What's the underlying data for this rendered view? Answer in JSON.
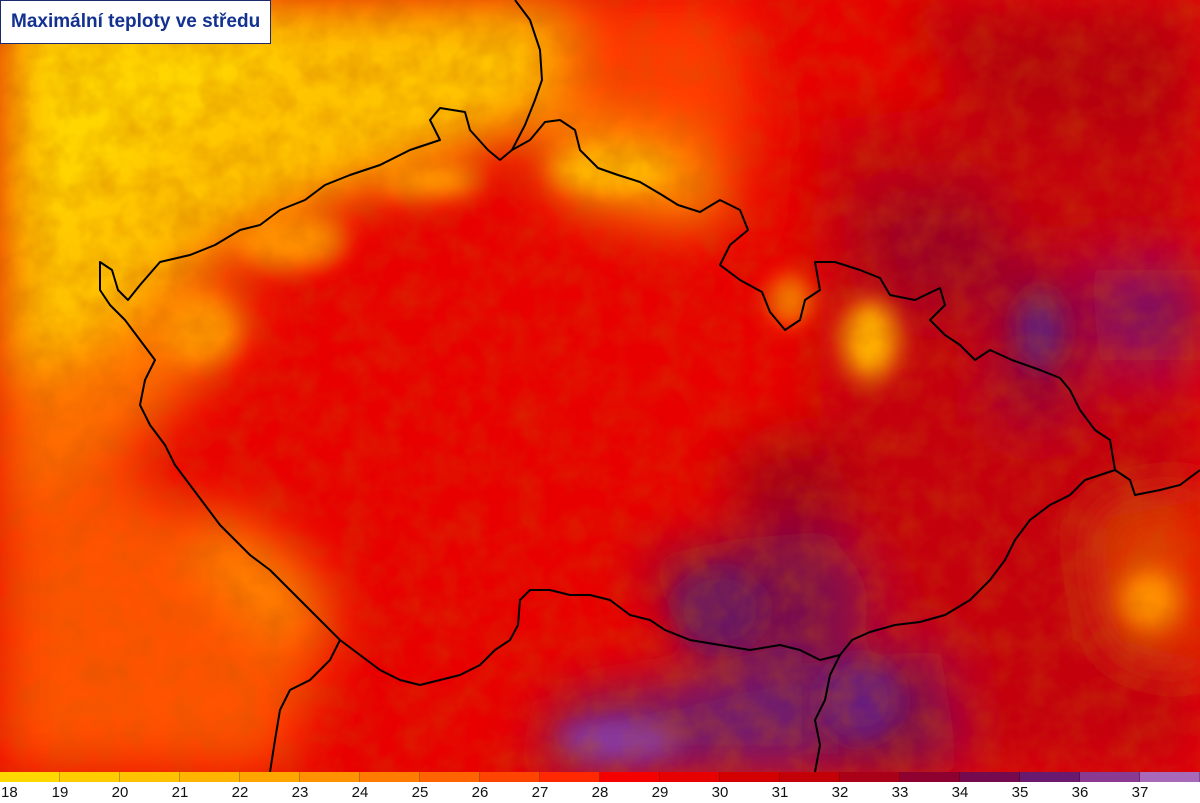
{
  "title": "Maximální teploty ve středu",
  "legend": {
    "labels": [
      "18",
      "19",
      "20",
      "21",
      "22",
      "23",
      "24",
      "25",
      "26",
      "27",
      "28",
      "29",
      "30",
      "31",
      "32",
      "33",
      "34",
      "35",
      "36",
      "37"
    ],
    "colors": [
      "#ffd800",
      "#ffcc00",
      "#ffc200",
      "#ffb500",
      "#ffa500",
      "#ff9200",
      "#ff7c00",
      "#ff6400",
      "#ff4400",
      "#ff2800",
      "#f50000",
      "#e60000",
      "#d40000",
      "#c30008",
      "#aa0018",
      "#8e0030",
      "#750a4e",
      "#6a1a6e",
      "#8a3a90",
      "#a86ab8"
    ]
  },
  "map": {
    "region": "Česko",
    "border_color": "#000000"
  }
}
